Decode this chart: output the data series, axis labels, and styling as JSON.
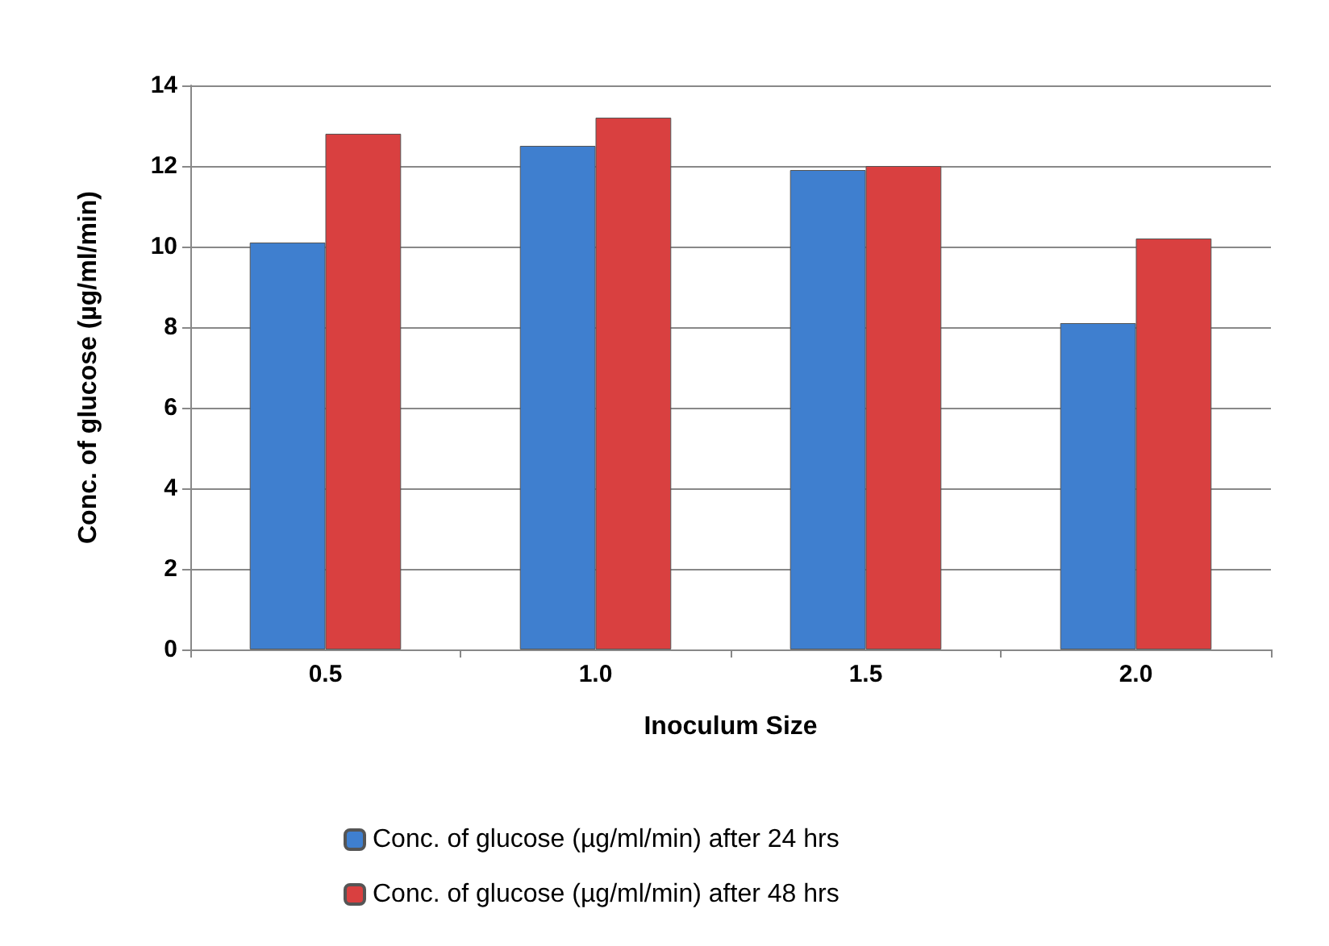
{
  "chart_data": {
    "type": "bar",
    "xlabel": "Inoculum Size",
    "ylabel": "Conc. of glucose (µg/ml/min)",
    "categories": [
      "0.5",
      "1.0",
      "1.5",
      "2.0"
    ],
    "series": [
      {
        "name": "Conc. of glucose (µg/ml/min) after 24 hrs",
        "color": "#3f7fcf",
        "values": [
          10.1,
          12.5,
          11.9,
          8.1
        ]
      },
      {
        "name": "Conc. of glucose (µg/ml/min) after 48 hrs",
        "color": "#d94040",
        "values": [
          12.8,
          13.2,
          12.0,
          10.2
        ]
      }
    ],
    "ylim": [
      0,
      14
    ],
    "yticks": [
      0,
      2,
      4,
      6,
      8,
      10,
      12,
      14
    ],
    "grid": "y",
    "legend": "bottom"
  }
}
